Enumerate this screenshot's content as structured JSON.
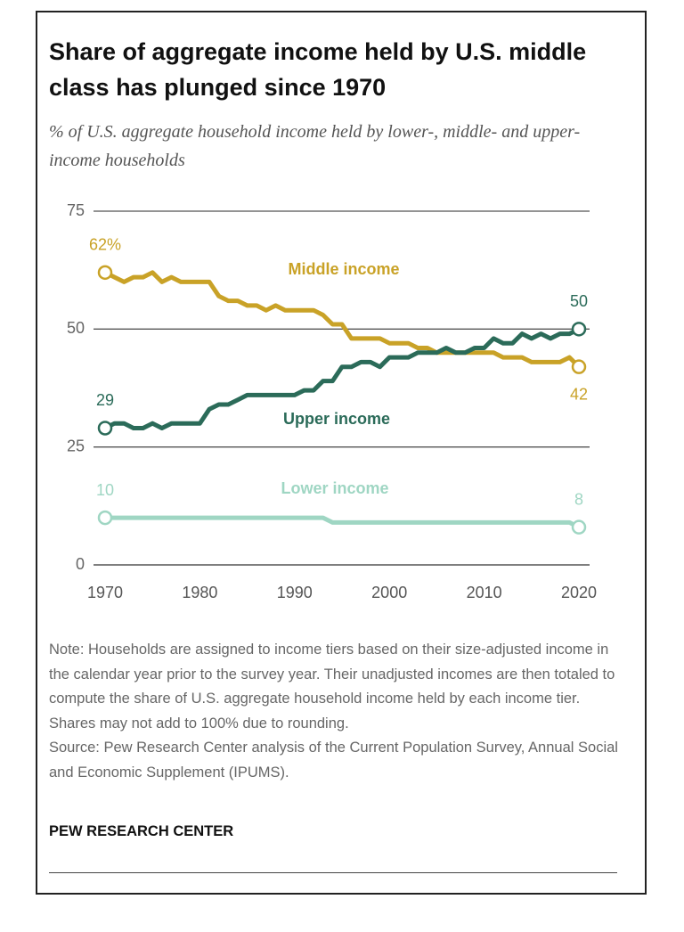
{
  "chart_data": {
    "type": "line",
    "title": "Share of aggregate income held by U.S. middle class has plunged since 1970",
    "subtitle": "% of U.S. aggregate household income held by lower-, middle- and upper-income households",
    "x": [
      1970,
      1971,
      1972,
      1973,
      1974,
      1975,
      1976,
      1977,
      1978,
      1979,
      1980,
      1981,
      1982,
      1983,
      1984,
      1985,
      1986,
      1987,
      1988,
      1989,
      1990,
      1991,
      1992,
      1993,
      1994,
      1995,
      1996,
      1997,
      1998,
      1999,
      2000,
      2001,
      2002,
      2003,
      2004,
      2005,
      2006,
      2007,
      2008,
      2009,
      2010,
      2011,
      2012,
      2013,
      2014,
      2015,
      2016,
      2017,
      2018,
      2019,
      2020
    ],
    "series": [
      {
        "name": "Middle income",
        "color": "#c9a227",
        "values": [
          62,
          61,
          60,
          61,
          61,
          62,
          60,
          61,
          60,
          60,
          60,
          60,
          57,
          56,
          56,
          55,
          55,
          54,
          55,
          54,
          54,
          54,
          54,
          53,
          51,
          51,
          48,
          48,
          48,
          48,
          47,
          47,
          47,
          46,
          46,
          45,
          45,
          45,
          45,
          45,
          45,
          45,
          44,
          44,
          44,
          43,
          43,
          43,
          43,
          44,
          42
        ],
        "value_labels": [
          "62%",
          null,
          null,
          null,
          null,
          null,
          null,
          null,
          null,
          null,
          null,
          null,
          null,
          null,
          null,
          null,
          null,
          null,
          null,
          null,
          null,
          null,
          null,
          null,
          null,
          null,
          null,
          null,
          null,
          null,
          null,
          null,
          null,
          null,
          null,
          null,
          null,
          null,
          null,
          null,
          null,
          null,
          null,
          null,
          null,
          null,
          null,
          null,
          null,
          null,
          "42"
        ]
      },
      {
        "name": "Upper income",
        "color": "#2b6b59",
        "values": [
          29,
          30,
          30,
          29,
          29,
          30,
          29,
          30,
          30,
          30,
          30,
          33,
          34,
          34,
          35,
          36,
          36,
          36,
          36,
          36,
          36,
          37,
          37,
          39,
          39,
          42,
          42,
          43,
          43,
          42,
          44,
          44,
          44,
          45,
          45,
          45,
          46,
          45,
          45,
          46,
          46,
          48,
          47,
          47,
          49,
          48,
          49,
          48,
          49,
          49,
          50
        ],
        "value_labels": [
          "29",
          null,
          null,
          null,
          null,
          null,
          null,
          null,
          null,
          null,
          null,
          null,
          null,
          null,
          null,
          null,
          null,
          null,
          null,
          null,
          null,
          null,
          null,
          null,
          null,
          null,
          null,
          null,
          null,
          null,
          null,
          null,
          null,
          null,
          null,
          null,
          null,
          null,
          null,
          null,
          null,
          null,
          null,
          null,
          null,
          null,
          null,
          null,
          null,
          null,
          "50"
        ]
      },
      {
        "name": "Lower income",
        "color": "#9fd6c3",
        "values": [
          10,
          10,
          10,
          10,
          10,
          10,
          10,
          10,
          10,
          10,
          10,
          10,
          10,
          10,
          10,
          10,
          10,
          10,
          10,
          10,
          10,
          10,
          10,
          10,
          9,
          9,
          9,
          9,
          9,
          9,
          9,
          9,
          9,
          9,
          9,
          9,
          9,
          9,
          9,
          9,
          9,
          9,
          9,
          9,
          9,
          9,
          9,
          9,
          9,
          9,
          8
        ],
        "value_labels": [
          "10",
          null,
          null,
          null,
          null,
          null,
          null,
          null,
          null,
          null,
          null,
          null,
          null,
          null,
          null,
          null,
          null,
          null,
          null,
          null,
          null,
          null,
          null,
          null,
          null,
          null,
          null,
          null,
          null,
          null,
          null,
          null,
          null,
          null,
          null,
          null,
          null,
          null,
          null,
          null,
          null,
          null,
          null,
          null,
          null,
          null,
          null,
          null,
          null,
          null,
          "8"
        ]
      }
    ],
    "xlim": [
      1970,
      2020
    ],
    "xticks": [
      1970,
      1980,
      1990,
      2000,
      2010,
      2020
    ],
    "ylim": [
      0,
      75
    ],
    "yticks": [
      0,
      25,
      50,
      75
    ],
    "grid": true,
    "note": "Note: Households are assigned to income tiers based on their size-adjusted income in the calendar year prior to the survey year. Their unadjusted incomes are then totaled to compute the share of U.S. aggregate household income held by each income tier. Shares may not add to 100% due to rounding.",
    "source": "Source: Pew Research Center analysis of the Current Population Survey, Annual Social and Economic Supplement (IPUMS).",
    "credit": "PEW RESEARCH CENTER"
  }
}
